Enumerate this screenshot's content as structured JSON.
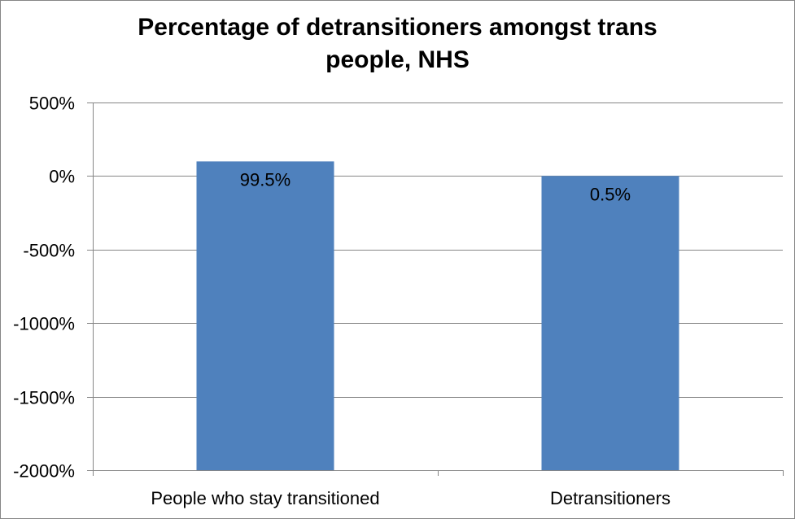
{
  "chart_data": {
    "type": "bar",
    "title": "Percentage of detransitioners amongst trans people, NHS",
    "categories": [
      "People who stay transitioned",
      "Detransitioners"
    ],
    "values": [
      99.5,
      0.5
    ],
    "data_labels": [
      "99.5%",
      "0.5%"
    ],
    "ylim": [
      -2000,
      500
    ],
    "yticks": [
      500,
      0,
      -500,
      -1000,
      -1500,
      -2000
    ],
    "ytick_labels": [
      "500%",
      "0%",
      "-500%",
      "-1000%",
      "-1500%",
      "-2000%"
    ],
    "xlabel": "",
    "ylabel": "",
    "grid": true,
    "legend": "none",
    "bar_color": "#4F81BD",
    "bar_base": -2000
  }
}
